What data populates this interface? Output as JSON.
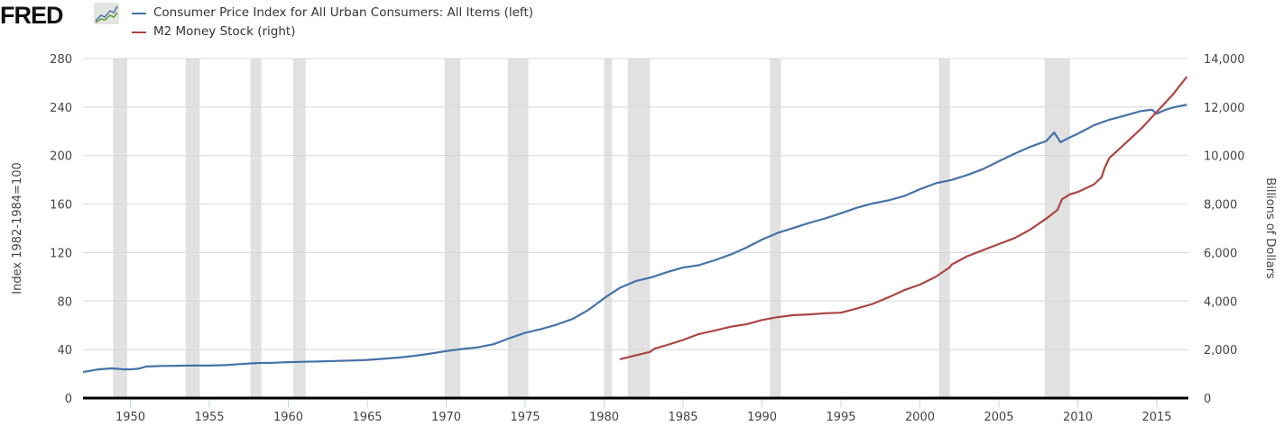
{
  "logo": {
    "text": "FRED",
    "icon": "line-chart-icon"
  },
  "legend": [
    {
      "label": "Consumer Price Index for All Urban Consumers: All Items (left)",
      "color": "#4572a7"
    },
    {
      "label": "M2 Money Stock (right)",
      "color": "#aa4643"
    }
  ],
  "chart_data": {
    "type": "line",
    "xlim": [
      1947.0,
      2017.0
    ],
    "x_ticks": [
      "1950",
      "1955",
      "1960",
      "1965",
      "1970",
      "1975",
      "1980",
      "1985",
      "1990",
      "1995",
      "2000",
      "2005",
      "2010",
      "2015"
    ],
    "y_left": {
      "label": "Index 1982-1984=100",
      "lim": [
        0,
        280
      ],
      "ticks": [
        "0",
        "40",
        "80",
        "120",
        "160",
        "200",
        "240",
        "280"
      ]
    },
    "y_right": {
      "label": "Billions of Dollars",
      "lim": [
        0,
        14000
      ],
      "ticks": [
        "0",
        "2,000",
        "4,000",
        "6,000",
        "8,000",
        "10,000",
        "12,000",
        "14,000"
      ]
    },
    "grid": true,
    "recessions": [
      [
        1948.9,
        1949.8
      ],
      [
        1953.5,
        1954.4
      ],
      [
        1957.6,
        1958.3
      ],
      [
        1960.3,
        1961.1
      ],
      [
        1969.9,
        1970.9
      ],
      [
        1973.9,
        1975.2
      ],
      [
        1980.0,
        1980.5
      ],
      [
        1981.5,
        1982.9
      ],
      [
        1990.5,
        1991.2
      ],
      [
        2001.2,
        2001.9
      ],
      [
        2007.9,
        2009.5
      ]
    ],
    "series": [
      {
        "name": "Consumer Price Index for All Urban Consumers: All Items (left)",
        "axis": "left",
        "color": "#4572a7",
        "x": [
          1947,
          1948,
          1948.8,
          1949.5,
          1950,
          1950.5,
          1951,
          1952,
          1953,
          1954,
          1955,
          1956,
          1957,
          1958,
          1959,
          1960,
          1961,
          1962,
          1963,
          1964,
          1965,
          1966,
          1967,
          1968,
          1969,
          1970,
          1971,
          1972,
          1973,
          1974,
          1975,
          1976,
          1977,
          1978,
          1979,
          1980,
          1981,
          1982,
          1983,
          1984,
          1985,
          1986,
          1987,
          1988,
          1989,
          1990,
          1991,
          1992,
          1993,
          1994,
          1995,
          1996,
          1997,
          1998,
          1999,
          2000,
          2001,
          2002,
          2003,
          2004,
          2005,
          2006,
          2007,
          2008,
          2008.5,
          2008.9,
          2009.5,
          2010,
          2011,
          2012,
          2013,
          2014,
          2014.7,
          2015.0,
          2015.5,
          2016,
          2016.9
        ],
        "y": [
          21.5,
          23.7,
          24.5,
          23.8,
          23.6,
          24.2,
          26.0,
          26.5,
          26.7,
          26.9,
          26.8,
          27.2,
          28.1,
          28.9,
          29.1,
          29.6,
          29.9,
          30.2,
          30.6,
          31.0,
          31.5,
          32.4,
          33.4,
          34.8,
          36.7,
          38.8,
          40.5,
          41.8,
          44.4,
          49.3,
          53.8,
          56.9,
          60.6,
          65.2,
          72.6,
          82.4,
          90.9,
          96.5,
          99.6,
          103.9,
          107.6,
          109.6,
          113.6,
          118.3,
          124.0,
          130.7,
          136.2,
          140.3,
          144.5,
          148.2,
          152.4,
          156.9,
          160.5,
          163.0,
          166.6,
          172.2,
          177.1,
          179.9,
          184.0,
          188.9,
          195.3,
          201.6,
          207.3,
          212.0,
          219.0,
          211.0,
          215.0,
          218.0,
          224.9,
          229.6,
          233.0,
          236.7,
          237.8,
          234.5,
          237.5,
          239.5,
          242.0
        ]
      },
      {
        "name": "M2 Money Stock (right)",
        "axis": "right",
        "color": "#aa4643",
        "x": [
          1981,
          1982,
          1982.9,
          1983.2,
          1984,
          1985,
          1986,
          1987,
          1988,
          1989,
          1990,
          1991,
          1992,
          1993,
          1994,
          1995,
          1996,
          1997,
          1998,
          1999,
          2000,
          2001,
          2001.9,
          2002,
          2003,
          2004,
          2005,
          2006,
          2007,
          2008,
          2008.7,
          2009.0,
          2009.5,
          2010,
          2011,
          2011.5,
          2011.7,
          2012,
          2013,
          2014,
          2015,
          2016,
          2016.9
        ],
        "y": [
          1600,
          1760,
          1900,
          2040,
          2190,
          2400,
          2640,
          2780,
          2940,
          3040,
          3220,
          3340,
          3420,
          3450,
          3500,
          3520,
          3690,
          3880,
          4150,
          4450,
          4680,
          5000,
          5400,
          5500,
          5850,
          6100,
          6350,
          6600,
          6950,
          7400,
          7750,
          8200,
          8400,
          8500,
          8800,
          9100,
          9500,
          9900,
          10500,
          11100,
          11800,
          12500,
          13250
        ]
      }
    ]
  }
}
